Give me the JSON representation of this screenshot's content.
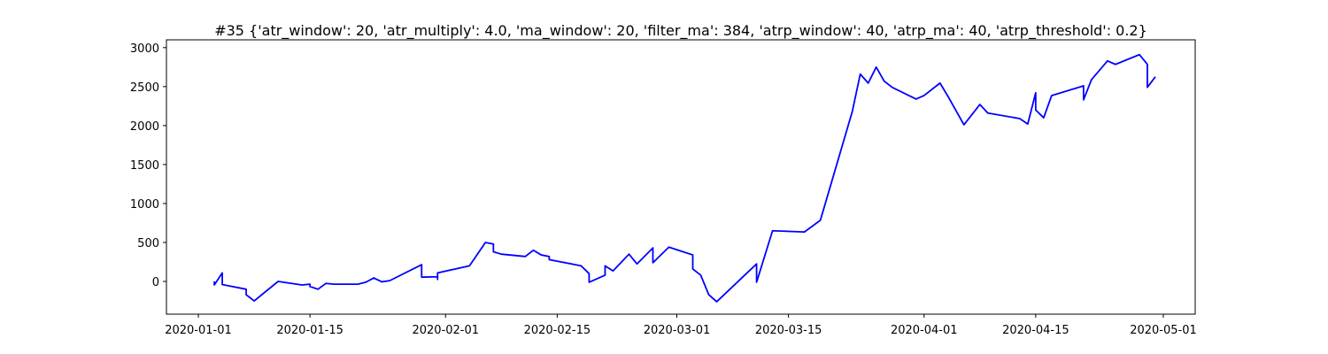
{
  "chart_data": {
    "type": "line",
    "title": "#35 {'atr_window': 20, 'atr_multiply': 4.0, 'ma_window': 20, 'filter_ma': 384, 'atrp_window': 40, 'atrp_ma': 40, 'atrp_threshold': 0.2}",
    "x": [
      "2020-01-03",
      "2020-01-03",
      "2020-01-04",
      "2020-01-04",
      "2020-01-07",
      "2020-01-07",
      "2020-01-08",
      "2020-01-11",
      "2020-01-14",
      "2020-01-15",
      "2020-01-15",
      "2020-01-16",
      "2020-01-17",
      "2020-01-18",
      "2020-01-21",
      "2020-01-22",
      "2020-01-23",
      "2020-01-24",
      "2020-01-25",
      "2020-01-29",
      "2020-01-29",
      "2020-01-31",
      "2020-01-31",
      "2020-01-31",
      "2020-02-04",
      "2020-02-06",
      "2020-02-07",
      "2020-02-07",
      "2020-02-08",
      "2020-02-11",
      "2020-02-12",
      "2020-02-13",
      "2020-02-14",
      "2020-02-14",
      "2020-02-15",
      "2020-02-18",
      "2020-02-19",
      "2020-02-19",
      "2020-02-21",
      "2020-02-21",
      "2020-02-22",
      "2020-02-24",
      "2020-02-25",
      "2020-02-27",
      "2020-02-27",
      "2020-02-29",
      "2020-03-03",
      "2020-03-03",
      "2020-03-04",
      "2020-03-05",
      "2020-03-06",
      "2020-03-11",
      "2020-03-11",
      "2020-03-13",
      "2020-03-17",
      "2020-03-19",
      "2020-03-23",
      "2020-03-24",
      "2020-03-25",
      "2020-03-26",
      "2020-03-27",
      "2020-03-28",
      "2020-03-31",
      "2020-04-01",
      "2020-04-03",
      "2020-04-04",
      "2020-04-06",
      "2020-04-08",
      "2020-04-09",
      "2020-04-13",
      "2020-04-14",
      "2020-04-15",
      "2020-04-15",
      "2020-04-16",
      "2020-04-17",
      "2020-04-21",
      "2020-04-21",
      "2020-04-22",
      "2020-04-24",
      "2020-04-25",
      "2020-04-28",
      "2020-04-29",
      "2020-04-29",
      "2020-04-29",
      "2020-04-30"
    ],
    "series": [
      {
        "color": "#0000ff",
        "values": [
          0,
          -45,
          110,
          -40,
          -100,
          -170,
          -250,
          0,
          -45,
          -35,
          -65,
          -100,
          -25,
          -35,
          -35,
          -10,
          45,
          -5,
          10,
          215,
          55,
          60,
          25,
          110,
          200,
          500,
          480,
          380,
          350,
          320,
          400,
          340,
          320,
          280,
          260,
          200,
          100,
          -10,
          80,
          200,
          135,
          350,
          225,
          430,
          240,
          440,
          340,
          160,
          80,
          -170,
          -260,
          225,
          -10,
          650,
          635,
          785,
          2180,
          2660,
          2545,
          2750,
          2570,
          2490,
          2340,
          2385,
          2545,
          2375,
          2010,
          2270,
          2160,
          2090,
          2020,
          2420,
          2200,
          2100,
          2385,
          2510,
          2330,
          2590,
          2830,
          2785,
          2910,
          2785,
          2590,
          2490,
          2625
        ]
      }
    ],
    "xlim": [
      "2019-12-28",
      "2020-05-05"
    ],
    "xticks": [
      "2020-01-01",
      "2020-01-15",
      "2020-02-01",
      "2020-02-15",
      "2020-03-01",
      "2020-03-15",
      "2020-04-01",
      "2020-04-15",
      "2020-05-01"
    ],
    "ylim": [
      -420,
      3100
    ],
    "yticks": [
      0,
      500,
      1000,
      1500,
      2000,
      2500,
      3000
    ],
    "grid": false
  }
}
